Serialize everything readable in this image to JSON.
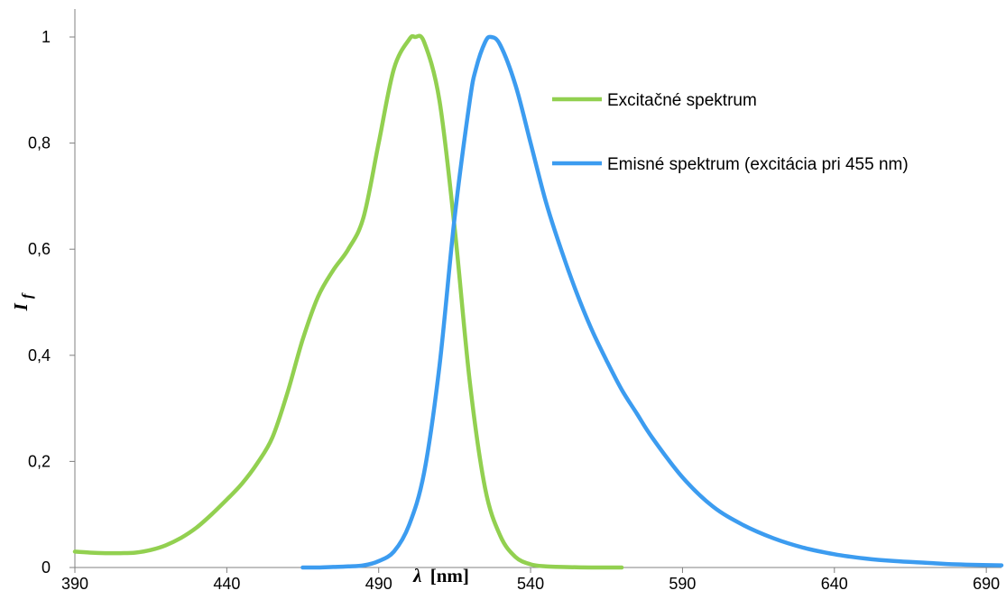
{
  "chart_data": {
    "type": "line",
    "xlabel_symbol": "λ",
    "xlabel_unit": "[nm]",
    "ylabel_main": "I",
    "ylabel_sub": "f",
    "xlim": [
      390,
      695
    ],
    "ylim": [
      0,
      1
    ],
    "x_ticks": [
      "390",
      "440",
      "490",
      "540",
      "590",
      "640",
      "690"
    ],
    "y_ticks": [
      "0",
      "0,2",
      "0,4",
      "0,6",
      "0,8",
      "1"
    ],
    "grid": false,
    "legend_position": "top-right",
    "series": [
      {
        "name": "Excitačné spektrum",
        "color": "#92D050",
        "x": [
          390,
          395,
          400,
          405,
          410,
          415,
          420,
          425,
          430,
          435,
          440,
          445,
          450,
          455,
          460,
          465,
          470,
          475,
          480,
          485,
          490,
          495,
          500,
          502,
          505,
          510,
          515,
          520,
          525,
          530,
          535,
          540,
          545,
          550,
          560,
          570
        ],
        "y": [
          0.03,
          0.028,
          0.027,
          0.027,
          0.028,
          0.033,
          0.042,
          0.056,
          0.075,
          0.1,
          0.128,
          0.158,
          0.196,
          0.245,
          0.33,
          0.43,
          0.51,
          0.56,
          0.6,
          0.66,
          0.8,
          0.94,
          0.995,
          1.0,
          0.99,
          0.88,
          0.64,
          0.35,
          0.15,
          0.06,
          0.02,
          0.006,
          0.002,
          0.001,
          0.0,
          0.0
        ]
      },
      {
        "name": "Emisné spektrum (excitácia pri 455 nm)",
        "color": "#3C9CF0",
        "x": [
          465,
          470,
          475,
          480,
          485,
          490,
          495,
          500,
          505,
          510,
          515,
          520,
          522,
          525,
          527,
          530,
          535,
          540,
          545,
          550,
          555,
          560,
          565,
          570,
          575,
          580,
          590,
          600,
          610,
          620,
          630,
          640,
          650,
          660,
          670,
          680,
          695
        ],
        "y": [
          0.0,
          0.0,
          0.001,
          0.002,
          0.004,
          0.012,
          0.03,
          0.08,
          0.18,
          0.38,
          0.66,
          0.88,
          0.94,
          0.99,
          1.0,
          0.985,
          0.91,
          0.8,
          0.69,
          0.6,
          0.52,
          0.45,
          0.39,
          0.335,
          0.29,
          0.245,
          0.17,
          0.115,
          0.08,
          0.055,
          0.037,
          0.025,
          0.017,
          0.012,
          0.009,
          0.006,
          0.004
        ]
      }
    ]
  }
}
